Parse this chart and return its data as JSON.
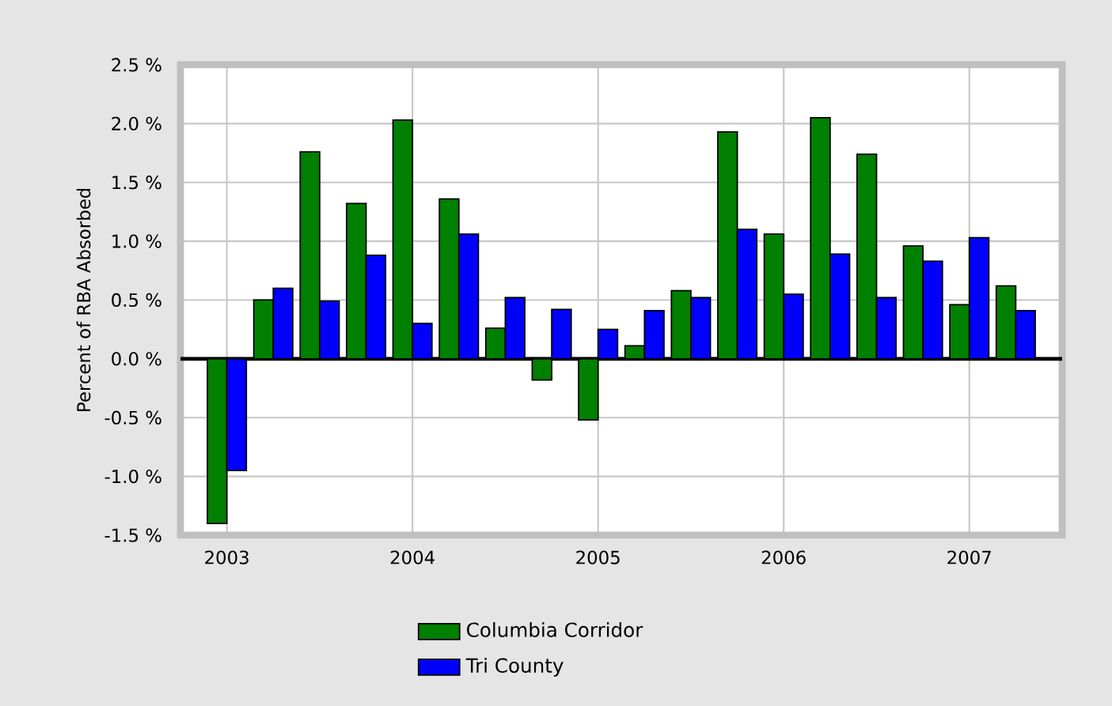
{
  "chart_data": {
    "type": "bar",
    "ylabel": "Percent of RBA Absorbed",
    "x": [
      2003,
      2003.25,
      2003.5,
      2003.75,
      2004,
      2004.25,
      2004.5,
      2004.75,
      2005,
      2005.25,
      2005.5,
      2005.75,
      2006,
      2006.25,
      2006.5,
      2006.75,
      2007,
      2007.25
    ],
    "series": [
      {
        "name": "Columbia Corridor",
        "color": "#008000",
        "values": [
          -1.4,
          0.5,
          1.76,
          1.32,
          2.03,
          1.36,
          0.26,
          -0.18,
          -0.52,
          0.11,
          0.58,
          1.93,
          1.06,
          2.05,
          1.74,
          0.96,
          0.46,
          0.62
        ]
      },
      {
        "name": "Tri County",
        "color": "#0000ff",
        "values": [
          -0.95,
          0.6,
          0.49,
          0.88,
          0.3,
          1.06,
          0.52,
          0.42,
          0.25,
          0.41,
          0.52,
          1.1,
          0.55,
          0.89,
          0.52,
          0.83,
          1.03,
          0.41
        ]
      }
    ],
    "xlim": [
      2002.75,
      2007.5
    ],
    "xticks": [
      2003,
      2004,
      2005,
      2006,
      2007
    ],
    "ylim": [
      -1.5,
      2.5
    ],
    "yticks": [
      {
        "value": -1.5,
        "label": "-1.5 %"
      },
      {
        "value": -1.0,
        "label": "-1.0 %"
      },
      {
        "value": -0.5,
        "label": "-0.5 %"
      },
      {
        "value": 0.0,
        "label": "0.0 %"
      },
      {
        "value": 0.5,
        "label": "0.5 %"
      },
      {
        "value": 1.0,
        "label": "1.0 %"
      },
      {
        "value": 1.5,
        "label": "1.5 %"
      },
      {
        "value": 2.0,
        "label": "2.0 %"
      },
      {
        "value": 2.5,
        "label": "2.5 %"
      }
    ],
    "grid": true,
    "legend": "bottom"
  }
}
